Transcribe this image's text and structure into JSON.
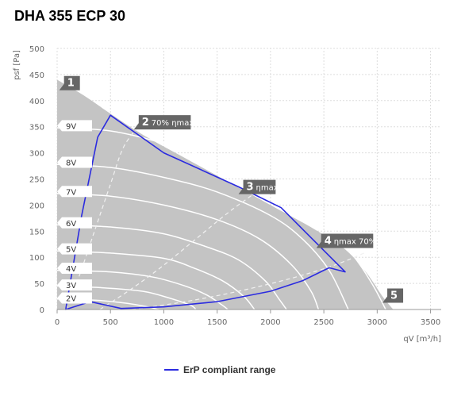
{
  "chart_data": {
    "type": "line",
    "title": "DHA 355 ECP 30",
    "xlabel": "qV [m³/h]",
    "ylabel": "psf [Pa]",
    "xlim": [
      0,
      3600
    ],
    "ylim": [
      0,
      500
    ],
    "xticks": [
      0,
      500,
      1000,
      1500,
      2000,
      2500,
      3000,
      3500
    ],
    "yticks": [
      0,
      50,
      100,
      150,
      200,
      250,
      300,
      350,
      400,
      450,
      500
    ],
    "grid": true,
    "legend": {
      "position": "bottom-center",
      "entries": [
        "ErP compliant range"
      ],
      "color": "#2b2be0"
    },
    "envelope": [
      [
        0,
        440
      ],
      [
        250,
        410
      ],
      [
        500,
        375
      ],
      [
        800,
        335
      ],
      [
        1200,
        290
      ],
      [
        1600,
        245
      ],
      [
        2000,
        200
      ],
      [
        2400,
        155
      ],
      [
        2700,
        115
      ],
      [
        2900,
        70
      ],
      [
        3050,
        25
      ],
      [
        3150,
        0
      ],
      [
        0,
        0
      ]
    ],
    "voltage_curves": [
      {
        "name": "9V",
        "points": [
          [
            0,
            348
          ],
          [
            500,
            342
          ],
          [
            1000,
            318
          ],
          [
            1500,
            285
          ],
          [
            2000,
            240
          ],
          [
            2400,
            190
          ],
          [
            2750,
            110
          ],
          [
            2950,
            50
          ],
          [
            3080,
            0
          ]
        ]
      },
      {
        "name": "8V",
        "points": [
          [
            0,
            278
          ],
          [
            500,
            272
          ],
          [
            1000,
            253
          ],
          [
            1500,
            225
          ],
          [
            2000,
            180
          ],
          [
            2300,
            135
          ],
          [
            2550,
            75
          ],
          [
            2730,
            0
          ]
        ]
      },
      {
        "name": "7V",
        "points": [
          [
            0,
            222
          ],
          [
            500,
            217
          ],
          [
            1000,
            200
          ],
          [
            1500,
            172
          ],
          [
            1900,
            135
          ],
          [
            2200,
            85
          ],
          [
            2380,
            35
          ],
          [
            2450,
            0
          ]
        ]
      },
      {
        "name": "6V",
        "points": [
          [
            0,
            162
          ],
          [
            500,
            158
          ],
          [
            1000,
            145
          ],
          [
            1400,
            120
          ],
          [
            1700,
            95
          ],
          [
            1950,
            55
          ],
          [
            2080,
            20
          ],
          [
            2150,
            0
          ]
        ]
      },
      {
        "name": "5V",
        "points": [
          [
            0,
            112
          ],
          [
            500,
            108
          ],
          [
            1000,
            98
          ],
          [
            1300,
            78
          ],
          [
            1550,
            55
          ],
          [
            1750,
            25
          ],
          [
            1850,
            0
          ]
        ]
      },
      {
        "name": "4V",
        "points": [
          [
            0,
            75
          ],
          [
            500,
            72
          ],
          [
            900,
            62
          ],
          [
            1200,
            45
          ],
          [
            1400,
            28
          ],
          [
            1550,
            8
          ],
          [
            1600,
            0
          ]
        ]
      },
      {
        "name": "3V",
        "points": [
          [
            0,
            45
          ],
          [
            400,
            42
          ],
          [
            800,
            35
          ],
          [
            1050,
            22
          ],
          [
            1250,
            8
          ],
          [
            1300,
            0
          ]
        ]
      },
      {
        "name": "2V",
        "points": [
          [
            0,
            20
          ],
          [
            350,
            18
          ],
          [
            650,
            12
          ],
          [
            850,
            5
          ],
          [
            950,
            0
          ]
        ]
      }
    ],
    "efficiency_curves": [
      {
        "points": [
          [
            80,
            0
          ],
          [
            200,
            60
          ],
          [
            350,
            150
          ],
          [
            500,
            240
          ],
          [
            620,
            310
          ],
          [
            760,
            350
          ]
        ]
      },
      {
        "points": [
          [
            400,
            0
          ],
          [
            700,
            40
          ],
          [
            1000,
            85
          ],
          [
            1300,
            135
          ],
          [
            1600,
            185
          ],
          [
            1800,
            215
          ],
          [
            2000,
            245
          ]
        ]
      },
      {
        "points": [
          [
            700,
            0
          ],
          [
            1200,
            15
          ],
          [
            1700,
            35
          ],
          [
            2200,
            60
          ],
          [
            2600,
            85
          ],
          [
            2900,
            110
          ]
        ]
      }
    ],
    "erp_range": [
      [
        310,
        15
      ],
      [
        600,
        2
      ],
      [
        1000,
        5
      ],
      [
        1500,
        15
      ],
      [
        2000,
        35
      ],
      [
        2300,
        55
      ],
      [
        2550,
        80
      ],
      [
        2700,
        72
      ],
      [
        2100,
        195
      ],
      [
        1700,
        235
      ],
      [
        1000,
        300
      ],
      [
        500,
        372
      ],
      [
        380,
        330
      ],
      [
        230,
        180
      ],
      [
        130,
        60
      ],
      [
        80,
        0
      ]
    ],
    "voltage_labels": [
      {
        "text": "9V",
        "y": 352
      },
      {
        "text": "8V",
        "y": 282
      },
      {
        "text": "7V",
        "y": 226
      },
      {
        "text": "6V",
        "y": 166
      },
      {
        "text": "5V",
        "y": 116
      },
      {
        "text": "4V",
        "y": 79
      },
      {
        "text": "3V",
        "y": 47
      },
      {
        "text": "2V",
        "y": 22
      }
    ],
    "markers": [
      {
        "num": "1",
        "text": "",
        "x": 20,
        "y": 432
      },
      {
        "num": "2",
        "text": "70% ηmax",
        "x": 720,
        "y": 357
      },
      {
        "num": "3",
        "text": "ηmax",
        "x": 1700,
        "y": 233
      },
      {
        "num": "4",
        "text": "ηmax 70%",
        "x": 2430,
        "y": 130
      },
      {
        "num": "5",
        "text": "",
        "x": 3050,
        "y": 25
      }
    ]
  }
}
